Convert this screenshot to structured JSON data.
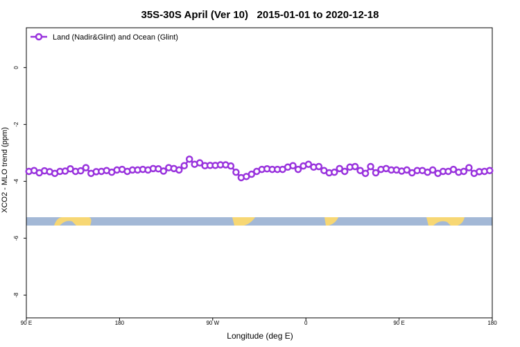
{
  "chart_data": {
    "type": "line",
    "title": "35S-30S April (Ver 10)   2015-01-01 to 2020-12-18",
    "x_label": "Longitude (deg E)",
    "y_label": "XCO2 - MLO trend (ppm)",
    "xlim": [
      90,
      540
    ],
    "xticks": [
      {
        "value": 90,
        "label": "90 E"
      },
      180,
      {
        "value": 270,
        "label": "90 W"
      },
      {
        "value": 360,
        "label": "0"
      },
      {
        "value": 450,
        "label": "90 E"
      },
      {
        "value": 540,
        "label": "180"
      }
    ],
    "ylim": [
      -8.8,
      1.4
    ],
    "yticks": [
      0,
      -2,
      -4,
      -6,
      -8
    ],
    "legend": "top-left",
    "x": [
      92.5,
      97.5,
      102.5,
      107.5,
      112.5,
      117.5,
      122.5,
      127.5,
      132.5,
      137.5,
      142.5,
      147.5,
      152.5,
      157.5,
      162.5,
      167.5,
      172.5,
      177.5,
      182.5,
      187.5,
      192.5,
      197.5,
      202.5,
      207.5,
      212.5,
      217.5,
      222.5,
      227.5,
      232.5,
      237.5,
      242.5,
      247.5,
      252.5,
      257.5,
      262.5,
      267.5,
      272.5,
      277.5,
      282.5,
      287.5,
      292.5,
      297.5,
      302.5,
      307.5,
      312.5,
      317.5,
      322.5,
      327.5,
      332.5,
      337.5,
      342.5,
      347.5,
      352.5,
      357.5,
      362.5,
      367.5,
      372.5,
      377.5,
      382.5,
      387.5,
      392.5,
      397.5,
      402.5,
      407.5,
      412.5,
      417.5,
      422.5,
      427.5,
      432.5,
      437.5,
      442.5,
      447.5,
      452.5,
      457.5,
      462.5,
      467.5,
      472.5,
      477.5,
      482.5,
      487.5,
      492.5,
      497.5,
      502.5,
      507.5,
      512.5,
      517.5,
      522.5,
      527.5,
      532.5,
      537.5
    ],
    "series": [
      {
        "name": "Land (Nadir&Glint) and Ocean (Glint)",
        "color": "#9933dd",
        "values": [
          -3.65,
          -3.62,
          -3.7,
          -3.63,
          -3.66,
          -3.72,
          -3.65,
          -3.64,
          -3.56,
          -3.65,
          -3.63,
          -3.52,
          -3.72,
          -3.66,
          -3.65,
          -3.62,
          -3.68,
          -3.6,
          -3.58,
          -3.65,
          -3.6,
          -3.6,
          -3.58,
          -3.6,
          -3.55,
          -3.56,
          -3.64,
          -3.52,
          -3.55,
          -3.6,
          -3.45,
          -3.22,
          -3.4,
          -3.35,
          -3.45,
          -3.44,
          -3.44,
          -3.42,
          -3.42,
          -3.46,
          -3.68,
          -3.87,
          -3.83,
          -3.75,
          -3.65,
          -3.58,
          -3.56,
          -3.58,
          -3.58,
          -3.58,
          -3.5,
          -3.45,
          -3.58,
          -3.46,
          -3.4,
          -3.5,
          -3.48,
          -3.62,
          -3.7,
          -3.68,
          -3.55,
          -3.65,
          -3.5,
          -3.48,
          -3.62,
          -3.72,
          -3.48,
          -3.7,
          -3.58,
          -3.55,
          -3.6,
          -3.6,
          -3.64,
          -3.6,
          -3.7,
          -3.62,
          -3.62,
          -3.68,
          -3.6,
          -3.72,
          -3.65,
          -3.65,
          -3.58,
          -3.68,
          -3.65,
          -3.52,
          -3.72,
          -3.66,
          -3.65,
          -3.62
        ]
      }
    ]
  }
}
